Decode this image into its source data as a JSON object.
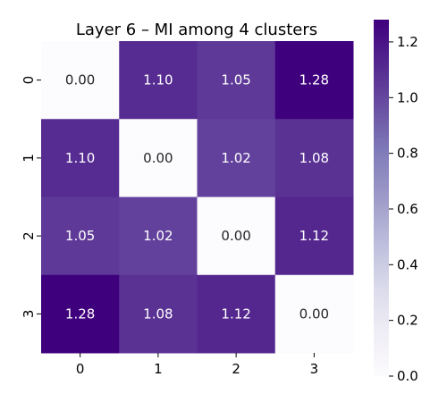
{
  "chart_data": {
    "type": "heatmap",
    "title": "Layer 6 – MI among 4 clusters",
    "x_tick_labels": [
      "0",
      "1",
      "2",
      "3"
    ],
    "y_tick_labels": [
      "0",
      "1",
      "2",
      "3"
    ],
    "values": [
      [
        0.0,
        1.1,
        1.05,
        1.28
      ],
      [
        1.1,
        0.0,
        1.02,
        1.08
      ],
      [
        1.05,
        1.02,
        0.0,
        1.12
      ],
      [
        1.28,
        1.08,
        1.12,
        0.0
      ]
    ],
    "cell_labels": [
      [
        "0.00",
        "1.10",
        "1.05",
        "1.28"
      ],
      [
        "1.10",
        "0.00",
        "1.02",
        "1.08"
      ],
      [
        "1.05",
        "1.02",
        "0.00",
        "1.12"
      ],
      [
        "1.28",
        "1.08",
        "1.12",
        "0.00"
      ]
    ],
    "colorscale": "Purples",
    "vmin": 0.0,
    "vmax": 1.28,
    "colorbar_ticks": [
      "0.0",
      "0.2",
      "0.4",
      "0.6",
      "0.8",
      "1.0",
      "1.2"
    ],
    "colors": {
      "low": "#fcfbfd",
      "high": "#3f007d"
    }
  }
}
